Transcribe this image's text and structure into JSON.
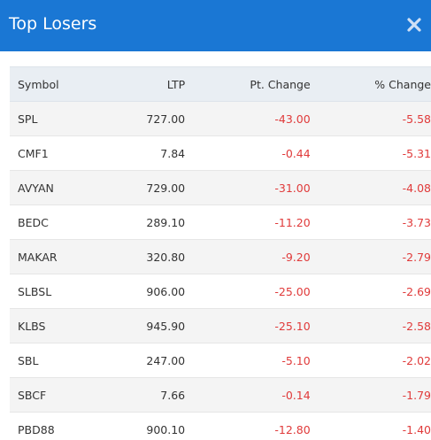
{
  "modal": {
    "title": "Top Losers",
    "close_icon": "close-icon"
  },
  "colors": {
    "header_bg": "#1a77d4",
    "negative": "#e03a3a"
  },
  "table": {
    "headers": {
      "symbol": "Symbol",
      "ltp": "LTP",
      "pt_change": "Pt. Change",
      "pct_change": "% Change"
    },
    "rows": [
      {
        "symbol": "SPL",
        "ltp": "727.00",
        "pt_change": "-43.00",
        "pct_change": "-5.58"
      },
      {
        "symbol": "CMF1",
        "ltp": "7.84",
        "pt_change": "-0.44",
        "pct_change": "-5.31"
      },
      {
        "symbol": "AVYAN",
        "ltp": "729.00",
        "pt_change": "-31.00",
        "pct_change": "-4.08"
      },
      {
        "symbol": "BEDC",
        "ltp": "289.10",
        "pt_change": "-11.20",
        "pct_change": "-3.73"
      },
      {
        "symbol": "MAKAR",
        "ltp": "320.80",
        "pt_change": "-9.20",
        "pct_change": "-2.79"
      },
      {
        "symbol": "SLBSL",
        "ltp": "906.00",
        "pt_change": "-25.00",
        "pct_change": "-2.69"
      },
      {
        "symbol": "KLBS",
        "ltp": "945.90",
        "pt_change": "-25.10",
        "pct_change": "-2.58"
      },
      {
        "symbol": "SBL",
        "ltp": "247.00",
        "pt_change": "-5.10",
        "pct_change": "-2.02"
      },
      {
        "symbol": "SBCF",
        "ltp": "7.66",
        "pt_change": "-0.14",
        "pct_change": "-1.79"
      },
      {
        "symbol": "PBD88",
        "ltp": "900.10",
        "pt_change": "-12.80",
        "pct_change": "-1.40"
      }
    ]
  }
}
